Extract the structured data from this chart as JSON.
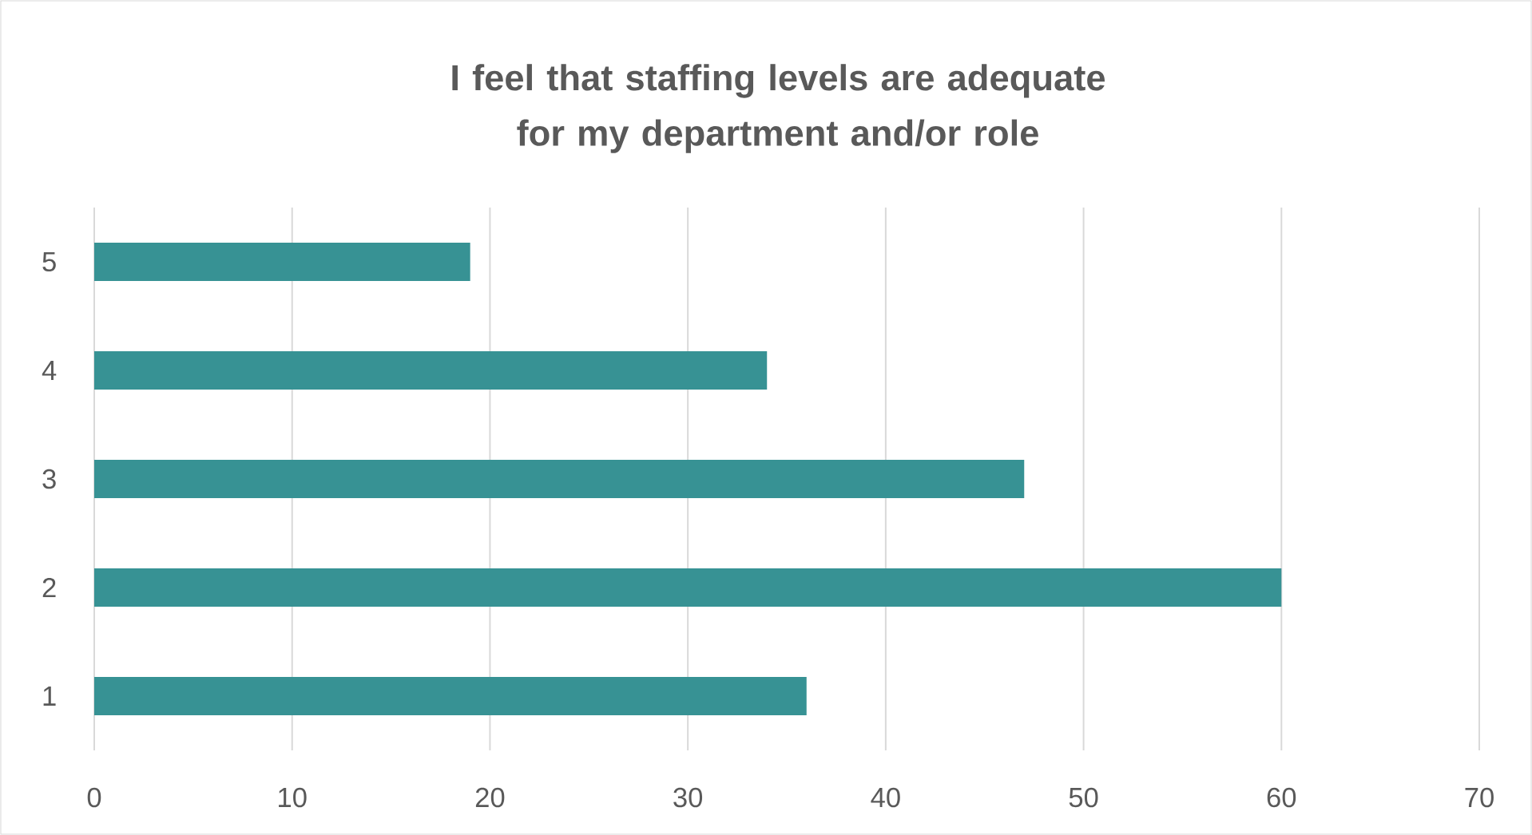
{
  "chart_data": {
    "type": "bar",
    "orientation": "horizontal",
    "title": "I feel that staffing levels are adequate for my department and/or role",
    "categories": [
      "5",
      "4",
      "3",
      "2",
      "1"
    ],
    "values": [
      19,
      34,
      47,
      60,
      36
    ],
    "color": "#379294",
    "xlim": [
      0,
      70
    ],
    "xticks": [
      0,
      10,
      20,
      30,
      40,
      50,
      60,
      70
    ],
    "grid": "x"
  }
}
